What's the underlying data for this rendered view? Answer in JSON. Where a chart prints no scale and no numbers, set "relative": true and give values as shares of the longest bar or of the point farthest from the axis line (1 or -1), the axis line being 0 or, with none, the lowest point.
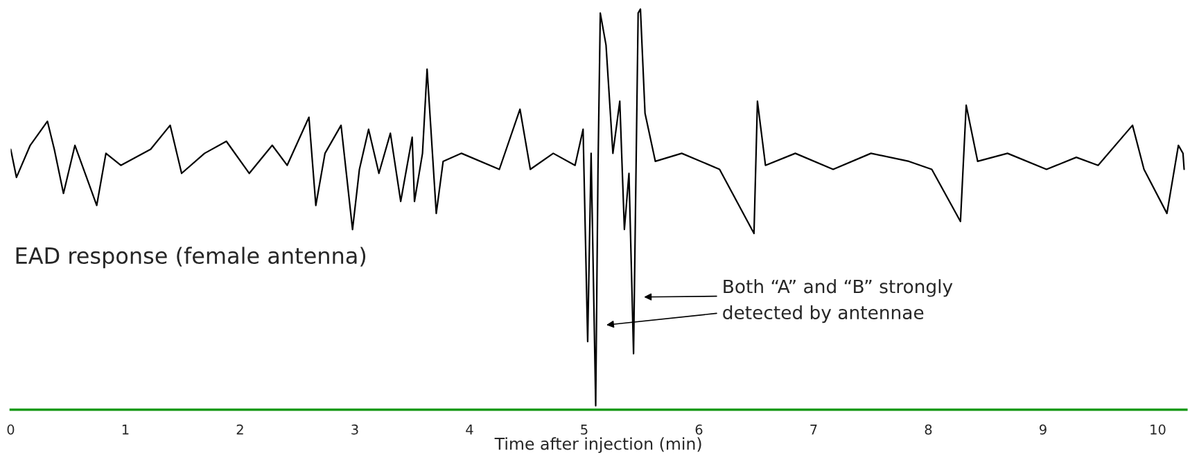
{
  "chart_data": {
    "type": "line",
    "relative": true,
    "xlabel": "Time after injection (min)",
    "x": [
      0,
      0.05,
      0.17,
      0.32,
      0.38,
      0.46,
      0.56,
      0.75,
      0.83,
      0.96,
      1.22,
      1.39,
      1.49,
      1.69,
      1.88,
      2.08,
      2.28,
      2.41,
      2.6,
      2.66,
      2.74,
      2.88,
      2.98,
      3.04,
      3.12,
      3.21,
      3.31,
      3.4,
      3.5,
      3.52,
      3.59,
      3.63,
      3.71,
      3.77,
      3.93,
      4.26,
      4.44,
      4.53,
      4.73,
      4.92,
      4.99,
      5.03,
      5.06,
      5.1,
      5.12,
      5.14,
      5.19,
      5.25,
      5.31,
      5.35,
      5.39,
      5.43,
      5.47,
      5.49,
      5.53,
      5.62,
      5.85,
      6.18,
      6.48,
      6.51,
      6.58,
      6.84,
      7.17,
      7.5,
      7.83,
      8.03,
      8.28,
      8.33,
      8.43,
      8.69,
      9.03,
      9.29,
      9.48,
      9.78,
      9.88,
      10.08,
      10.18,
      10.22,
      10.23
    ],
    "series": [
      {
        "color": "#000000",
        "values": [
          0.65,
          0.58,
          0.66,
          0.72,
          0.65,
          0.54,
          0.66,
          0.51,
          0.64,
          0.61,
          0.65,
          0.71,
          0.59,
          0.64,
          0.67,
          0.59,
          0.66,
          0.61,
          0.73,
          0.51,
          0.64,
          0.71,
          0.45,
          0.6,
          0.7,
          0.59,
          0.69,
          0.52,
          0.68,
          0.52,
          0.64,
          0.85,
          0.49,
          0.62,
          0.64,
          0.6,
          0.75,
          0.6,
          0.64,
          0.61,
          0.7,
          0.17,
          0.64,
          0.01,
          0.6,
          0.99,
          0.91,
          0.64,
          0.77,
          0.45,
          0.59,
          0.14,
          0.99,
          1.0,
          0.74,
          0.62,
          0.64,
          0.6,
          0.44,
          0.77,
          0.61,
          0.64,
          0.6,
          0.64,
          0.62,
          0.6,
          0.47,
          0.76,
          0.62,
          0.64,
          0.6,
          0.63,
          0.61,
          0.71,
          0.6,
          0.49,
          0.66,
          0.64,
          0.6
        ]
      }
    ],
    "xlim": [
      0,
      10.25
    ],
    "xticks": [
      0,
      1,
      2,
      3,
      4,
      5,
      6,
      7,
      8,
      9,
      10
    ],
    "annotations": [
      "EAD response (female antenna)",
      "Both “A” and “B” strongly\ndetected by antennae"
    ],
    "grid": false,
    "legend": false,
    "marker": "none",
    "line_style": "solid"
  }
}
